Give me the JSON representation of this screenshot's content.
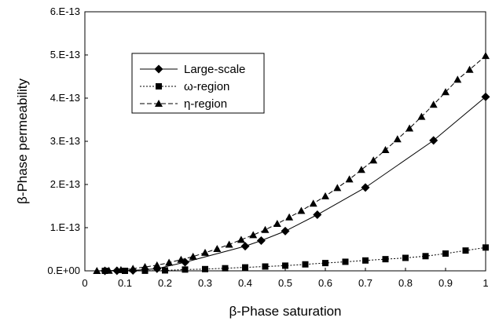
{
  "chart_data": {
    "type": "line",
    "title": "",
    "xlabel": "β-Phase saturation",
    "ylabel": "β-Phase permeability",
    "xlim": [
      0,
      1
    ],
    "ylim": [
      0,
      6e-13
    ],
    "x_ticks": [
      "0",
      "0.1",
      "0.2",
      "0.3",
      "0.4",
      "0.5",
      "0.6",
      "0.7",
      "0.8",
      "0.9",
      "1"
    ],
    "y_ticks": [
      "0.E+00",
      "1.E-13",
      "2.E-13",
      "3.E-13",
      "4.E-13",
      "5.E-13",
      "6.E-13"
    ],
    "grid": false,
    "legend_position": "upper-left",
    "series": [
      {
        "name": "Large-scale",
        "marker": "diamond",
        "line": "solid",
        "points": [
          [
            0.05,
            0.0
          ],
          [
            0.08,
            2e-16
          ],
          [
            0.12,
            1e-15
          ],
          [
            0.18,
            5e-15
          ],
          [
            0.25,
            2e-14
          ],
          [
            0.4,
            5.7e-14
          ],
          [
            0.44,
            7e-14
          ],
          [
            0.5,
            9.2e-14
          ],
          [
            0.58,
            1.3e-13
          ],
          [
            0.7,
            1.93e-13
          ],
          [
            0.87,
            3.02e-13
          ],
          [
            1.0,
            4.03e-13
          ]
        ]
      },
      {
        "name": "ω-region",
        "marker": "square",
        "line": "dotted",
        "points": [
          [
            0.05,
            0.0
          ],
          [
            0.1,
            0.0
          ],
          [
            0.15,
            2e-16
          ],
          [
            0.2,
            1e-15
          ],
          [
            0.25,
            3e-15
          ],
          [
            0.3,
            4e-15
          ],
          [
            0.35,
            6e-15
          ],
          [
            0.4,
            8e-15
          ],
          [
            0.45,
            1e-14
          ],
          [
            0.5,
            1.2e-14
          ],
          [
            0.55,
            1.5e-14
          ],
          [
            0.6,
            1.8e-14
          ],
          [
            0.65,
            2.1e-14
          ],
          [
            0.7,
            2.4e-14
          ],
          [
            0.75,
            2.7e-14
          ],
          [
            0.8,
            3e-14
          ],
          [
            0.85,
            3.4e-14
          ],
          [
            0.9,
            4e-14
          ],
          [
            0.95,
            4.7e-14
          ],
          [
            1.0,
            5.4e-14
          ]
        ]
      },
      {
        "name": "η-region",
        "marker": "triangle",
        "line": "dashed",
        "points": [
          [
            0.03,
            0.0
          ],
          [
            0.06,
            5e-16
          ],
          [
            0.09,
            2e-15
          ],
          [
            0.12,
            5e-15
          ],
          [
            0.15,
            9e-15
          ],
          [
            0.18,
            1.3e-14
          ],
          [
            0.21,
            1.9e-14
          ],
          [
            0.24,
            2.6e-14
          ],
          [
            0.27,
            3.3e-14
          ],
          [
            0.3,
            4.2e-14
          ],
          [
            0.33,
            5.1e-14
          ],
          [
            0.36,
            6.1e-14
          ],
          [
            0.39,
            7.2e-14
          ],
          [
            0.42,
            8.3e-14
          ],
          [
            0.45,
            9.5e-14
          ],
          [
            0.48,
            1.09e-13
          ],
          [
            0.51,
            1.24e-13
          ],
          [
            0.54,
            1.39e-13
          ],
          [
            0.57,
            1.56e-13
          ],
          [
            0.6,
            1.73e-13
          ],
          [
            0.63,
            1.92e-13
          ],
          [
            0.66,
            2.12e-13
          ],
          [
            0.69,
            2.34e-13
          ],
          [
            0.72,
            2.56e-13
          ],
          [
            0.75,
            2.8e-13
          ],
          [
            0.78,
            3.05e-13
          ],
          [
            0.81,
            3.3e-13
          ],
          [
            0.84,
            3.57e-13
          ],
          [
            0.87,
            3.85e-13
          ],
          [
            0.9,
            4.14e-13
          ],
          [
            0.93,
            4.43e-13
          ],
          [
            0.96,
            4.66e-13
          ],
          [
            1.0,
            4.98e-13
          ]
        ]
      }
    ]
  }
}
